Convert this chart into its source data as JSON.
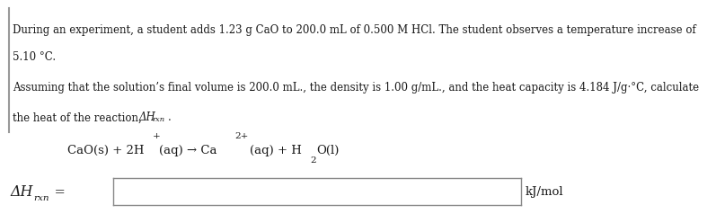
{
  "background_color": "#ffffff",
  "text_color": "#1a1a1a",
  "orange_color": "#cc4400",
  "blue_color": "#000080",
  "line1": "During an experiment, a student adds 1.23 g CaO to 200.0 mL of 0.500 M HCl. The student observes a temperature increase of",
  "line2": "5.10 °C.",
  "line3": "Assuming that the solution’s final volume is 200.0 mL., the density is 1.00 g/mL., and the heat capacity is 4.184 J/g·°C, calculate",
  "line4": "the heat of the reaction, ",
  "unit": "kJ/mol",
  "font_size_body": 8.5,
  "font_size_eq": 9.5,
  "font_size_label": 10.5
}
